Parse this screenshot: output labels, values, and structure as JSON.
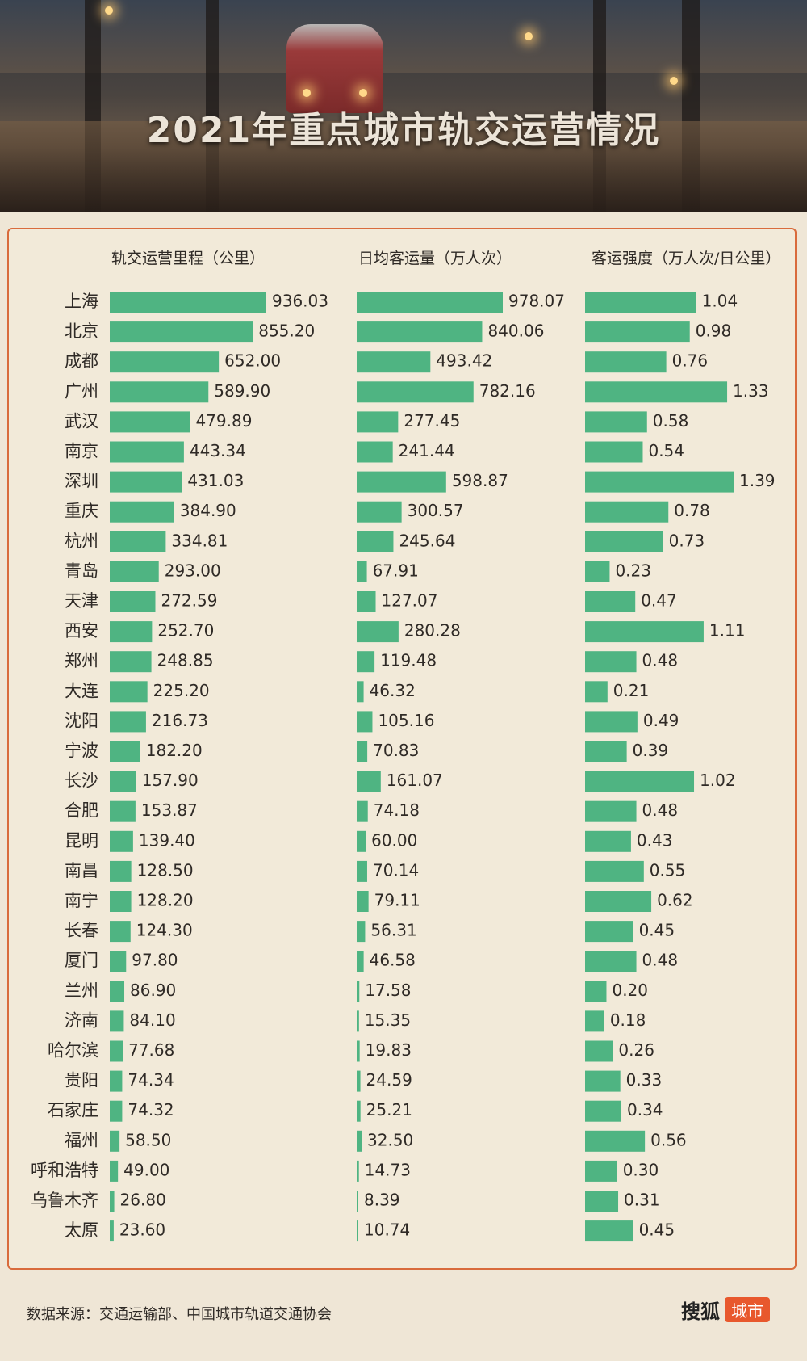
{
  "header": {
    "title": "2021年重点城市轨交运营情况"
  },
  "chart_data": {
    "type": "bar",
    "title": "2021年重点城市轨交运营情况",
    "categories": [
      "上海",
      "北京",
      "成都",
      "广州",
      "武汉",
      "南京",
      "深圳",
      "重庆",
      "杭州",
      "青岛",
      "天津",
      "西安",
      "郑州",
      "大连",
      "沈阳",
      "宁波",
      "长沙",
      "合肥",
      "昆明",
      "南昌",
      "南宁",
      "长春",
      "厦门",
      "兰州",
      "济南",
      "哈尔滨",
      "贵阳",
      "石家庄",
      "福州",
      "呼和浩特",
      "乌鲁木齐",
      "太原"
    ],
    "series": [
      {
        "name": "轨交运营里程（公里）",
        "values": [
          936.03,
          855.2,
          652.0,
          589.9,
          479.89,
          443.34,
          431.03,
          384.9,
          334.81,
          293.0,
          272.59,
          252.7,
          248.85,
          225.2,
          216.73,
          182.2,
          157.9,
          153.87,
          139.4,
          128.5,
          128.2,
          124.3,
          97.8,
          86.9,
          84.1,
          77.68,
          74.34,
          74.32,
          58.5,
          49.0,
          26.8,
          23.6
        ],
        "labels": [
          "936.03",
          "855.20",
          "652.00",
          "589.90",
          "479.89",
          "443.34",
          "431.03",
          "384.90",
          "334.81",
          "293.00",
          "272.59",
          "252.70",
          "248.85",
          "225.20",
          "216.73",
          "182.20",
          "157.90",
          "153.87",
          "139.40",
          "128.50",
          "128.20",
          "124.30",
          "97.80",
          "86.90",
          "84.10",
          "77.68",
          "74.34",
          "74.32",
          "58.50",
          "49.00",
          "26.80",
          "23.60"
        ]
      },
      {
        "name": "日均客运量（万人次）",
        "values": [
          978.07,
          840.06,
          493.42,
          782.16,
          277.45,
          241.44,
          598.87,
          300.57,
          245.64,
          67.91,
          127.07,
          280.28,
          119.48,
          46.32,
          105.16,
          70.83,
          161.07,
          74.18,
          60.0,
          70.14,
          79.11,
          56.31,
          46.58,
          17.58,
          15.35,
          19.83,
          24.59,
          25.21,
          32.5,
          14.73,
          8.39,
          10.74
        ],
        "labels": [
          "978.07",
          "840.06",
          "493.42",
          "782.16",
          "277.45",
          "241.44",
          "598.87",
          "300.57",
          "245.64",
          "67.91",
          "127.07",
          "280.28",
          "119.48",
          "46.32",
          "105.16",
          "70.83",
          "161.07",
          "74.18",
          "60.00",
          "70.14",
          "79.11",
          "56.31",
          "46.58",
          "17.58",
          "15.35",
          "19.83",
          "24.59",
          "25.21",
          "32.50",
          "14.73",
          "8.39",
          "10.74"
        ]
      },
      {
        "name": "客运强度（万人次/日公里）",
        "values": [
          1.04,
          0.98,
          0.76,
          1.33,
          0.58,
          0.54,
          1.39,
          0.78,
          0.73,
          0.23,
          0.47,
          1.11,
          0.48,
          0.21,
          0.49,
          0.39,
          1.02,
          0.48,
          0.43,
          0.55,
          0.62,
          0.45,
          0.48,
          0.2,
          0.18,
          0.26,
          0.33,
          0.34,
          0.56,
          0.3,
          0.31,
          0.45
        ],
        "labels": [
          "1.04",
          "0.98",
          "0.76",
          "1.33",
          "0.58",
          "0.54",
          "1.39",
          "0.78",
          "0.73",
          "0.23",
          "0.47",
          "1.11",
          "0.48",
          "0.21",
          "0.49",
          "0.39",
          "1.02",
          "0.48",
          "0.43",
          "0.55",
          "0.62",
          "0.45",
          "0.48",
          "0.20",
          "0.18",
          "0.26",
          "0.33",
          "0.34",
          "0.56",
          "0.30",
          "0.31",
          "0.45"
        ]
      }
    ],
    "bar_color": "#4fb482",
    "grid": false,
    "legend": "none"
  },
  "footer": {
    "source": "数据来源：交通运输部、中国城市轨道交通协会",
    "brand_text": "搜狐",
    "brand_badge": "城市"
  },
  "colors": {
    "bar": "#4fb482",
    "frame": "#d96b3c",
    "background": "#efe6d6"
  }
}
